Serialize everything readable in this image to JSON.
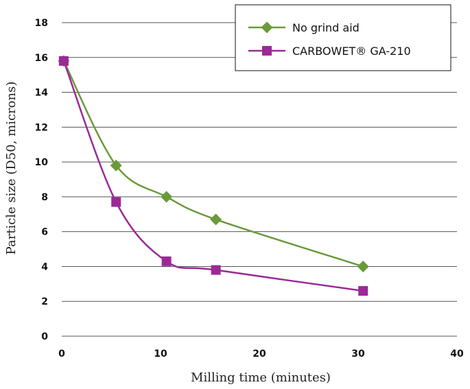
{
  "chart_data": {
    "type": "line",
    "title": "",
    "xlabel": "Milling time (minutes)",
    "ylabel": "Particle size (D50, microns)",
    "xlim": [
      0,
      40
    ],
    "ylim": [
      0,
      18
    ],
    "x_ticks": [
      0,
      10,
      20,
      30,
      40
    ],
    "y_ticks": [
      0,
      2,
      4,
      6,
      8,
      10,
      12,
      14,
      16,
      18
    ],
    "x_tick_labels": [
      "0",
      "10",
      "20",
      "30",
      "40"
    ],
    "y_tick_labels": [
      "0",
      "2",
      "4",
      "6",
      "8",
      "10",
      "12",
      "14",
      "16",
      "18"
    ],
    "grid": "horizontal",
    "legend_position": "top-right",
    "series": [
      {
        "name": "No grind aid",
        "color": "#6a9a3a",
        "marker": "diamond",
        "x": [
          0.2,
          5.5,
          10.6,
          15.6,
          30.5
        ],
        "y": [
          15.8,
          9.8,
          8.0,
          6.7,
          4.0
        ]
      },
      {
        "name": "CARBOWET® GA-210",
        "color": "#9a2a96",
        "marker": "square",
        "x": [
          0.2,
          5.5,
          10.6,
          15.6,
          30.5
        ],
        "y": [
          15.8,
          7.7,
          4.3,
          3.8,
          2.6
        ]
      }
    ]
  }
}
